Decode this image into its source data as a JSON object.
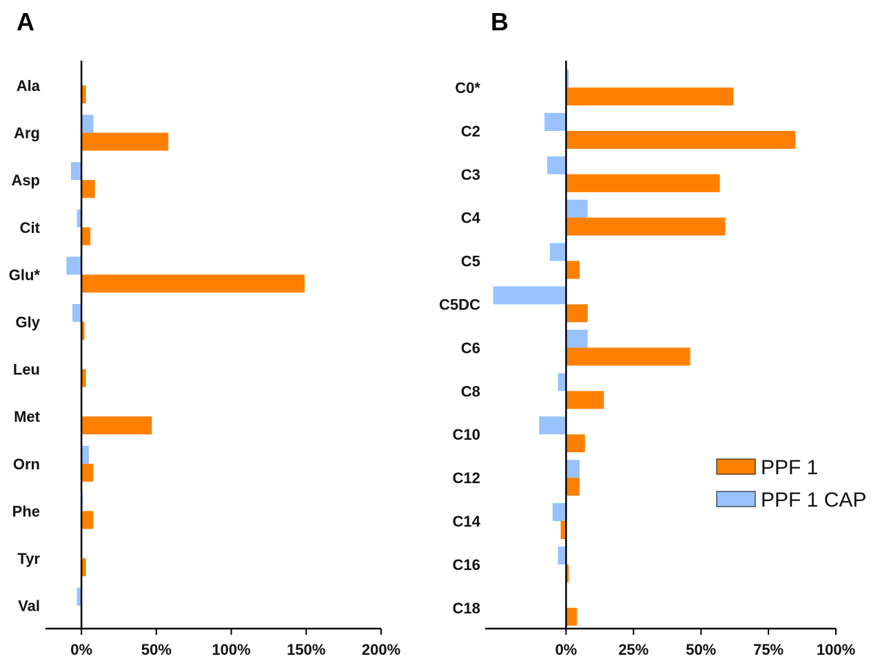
{
  "colors": {
    "ppf1": "#ff8000",
    "ppf1_cap": "#99c2ff",
    "axis": "#000000"
  },
  "legend": {
    "items": [
      {
        "label": "PPF 1",
        "color": "#ff8000"
      },
      {
        "label": "PPF 1 CAP",
        "color": "#99c2ff"
      }
    ]
  },
  "chart_data": [
    {
      "panel": "A",
      "type": "bar",
      "orientation": "horizontal",
      "categories": [
        "Ala",
        "Arg",
        "Asp",
        "Cit",
        "Glu*",
        "Gly",
        "Leu",
        "Met",
        "Orn",
        "Phe",
        "Tyr",
        "Val"
      ],
      "series": [
        {
          "name": "PPF 1",
          "values": [
            0.03,
            0.58,
            0.09,
            0.06,
            1.49,
            0.02,
            0.03,
            0.47,
            0.08,
            0.08,
            0.03,
            0.0
          ]
        },
        {
          "name": "PPF 1 CAP",
          "values": [
            0.0,
            0.08,
            -0.07,
            -0.03,
            -0.1,
            -0.06,
            0.0,
            -0.005,
            0.05,
            0.01,
            0.0,
            -0.03
          ]
        }
      ],
      "xlim": [
        -0.24,
        2.0
      ],
      "xticks": [
        0,
        0.5,
        1.0,
        1.5,
        2.0
      ],
      "xtick_labels": [
        "0%",
        "50%",
        "100%",
        "150%",
        "200%"
      ]
    },
    {
      "panel": "B",
      "type": "bar",
      "orientation": "horizontal",
      "categories": [
        "C0*",
        "C2",
        "C3",
        "C4",
        "C5",
        "C5DC",
        "C6",
        "C8",
        "C10",
        "C12",
        "C14",
        "C16",
        "C18"
      ],
      "series": [
        {
          "name": "PPF 1",
          "values": [
            0.62,
            0.85,
            0.57,
            0.59,
            0.05,
            0.08,
            0.46,
            0.14,
            0.07,
            0.05,
            -0.02,
            0.01,
            0.04
          ]
        },
        {
          "name": "PPF 1 CAP",
          "values": [
            0.01,
            -0.08,
            -0.07,
            0.08,
            -0.06,
            -0.27,
            0.08,
            -0.03,
            -0.1,
            0.05,
            -0.05,
            -0.03,
            0.0
          ]
        }
      ],
      "xlim": [
        -0.3,
        1.0
      ],
      "xticks": [
        0,
        0.25,
        0.5,
        0.75,
        1.0
      ],
      "xtick_labels": [
        "0%",
        "25%",
        "50%",
        "75%",
        "100%"
      ]
    }
  ]
}
